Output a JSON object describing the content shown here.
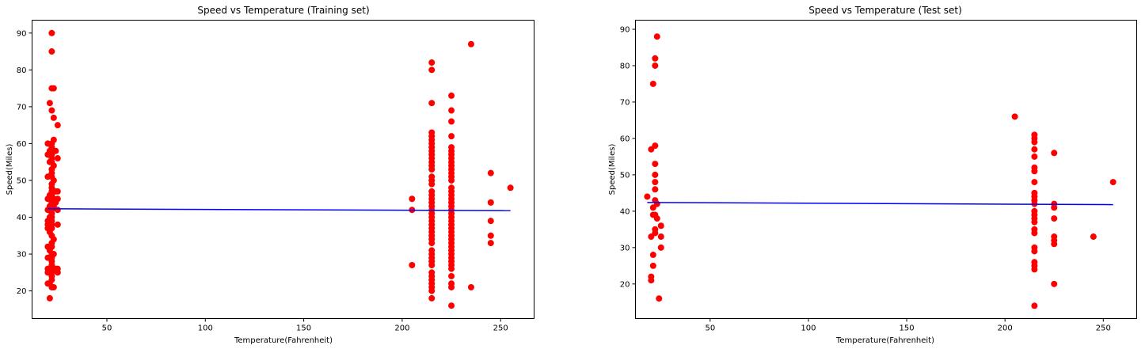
{
  "chart_data": [
    {
      "type": "scatter",
      "title": "Speed vs Temperature (Training set)",
      "xlabel": "Temperature(Fahrenheit)",
      "ylabel": "Speed(Miles)",
      "xlim": [
        12,
        267
      ],
      "ylim": [
        12.5,
        93.5
      ],
      "xticks": [
        50,
        100,
        150,
        200,
        250
      ],
      "yticks": [
        20,
        30,
        40,
        50,
        60,
        70,
        80,
        90
      ],
      "grid": false,
      "series": [
        {
          "kind": "points",
          "color": "#ff0000",
          "points": [
            [
              22,
              90
            ],
            [
              22,
              85
            ],
            [
              22,
              75
            ],
            [
              23,
              75
            ],
            [
              21,
              71
            ],
            [
              22,
              69
            ],
            [
              23,
              67
            ],
            [
              25,
              65
            ],
            [
              23,
              61
            ],
            [
              22,
              60
            ],
            [
              20,
              60
            ],
            [
              22,
              59
            ],
            [
              21,
              58
            ],
            [
              23,
              58
            ],
            [
              24,
              58
            ],
            [
              22,
              57
            ],
            [
              20,
              57
            ],
            [
              22,
              56
            ],
            [
              25,
              56
            ],
            [
              22,
              55
            ],
            [
              21,
              55
            ],
            [
              23,
              54
            ],
            [
              22,
              53
            ],
            [
              22,
              52
            ],
            [
              20,
              51
            ],
            [
              22,
              51
            ],
            [
              23,
              50
            ],
            [
              22,
              49
            ],
            [
              22,
              48
            ],
            [
              22,
              47
            ],
            [
              24,
              47
            ],
            [
              25,
              47
            ],
            [
              22,
              46
            ],
            [
              21,
              46
            ],
            [
              23,
              45
            ],
            [
              20,
              45
            ],
            [
              25,
              45
            ],
            [
              22,
              44
            ],
            [
              24,
              44
            ],
            [
              22,
              43
            ],
            [
              21,
              43
            ],
            [
              23,
              43
            ],
            [
              22,
              42
            ],
            [
              20,
              42
            ],
            [
              25,
              42
            ],
            [
              22,
              41
            ],
            [
              22,
              40
            ],
            [
              21,
              40
            ],
            [
              22,
              39
            ],
            [
              20,
              39
            ],
            [
              22,
              38
            ],
            [
              20,
              38
            ],
            [
              25,
              38
            ],
            [
              22,
              37
            ],
            [
              20,
              37
            ],
            [
              21,
              36
            ],
            [
              22,
              35
            ],
            [
              23,
              34
            ],
            [
              22,
              33
            ],
            [
              22,
              32
            ],
            [
              20,
              32
            ],
            [
              21,
              31
            ],
            [
              22,
              30
            ],
            [
              23,
              30
            ],
            [
              22,
              29
            ],
            [
              20,
              29
            ],
            [
              22,
              28
            ],
            [
              22,
              27
            ],
            [
              21,
              26
            ],
            [
              22,
              26
            ],
            [
              20,
              26
            ],
            [
              24,
              26
            ],
            [
              25,
              26
            ],
            [
              22,
              25
            ],
            [
              20,
              25
            ],
            [
              25,
              25
            ],
            [
              22,
              24
            ],
            [
              22,
              23
            ],
            [
              21,
              22
            ],
            [
              20,
              22
            ],
            [
              22,
              21
            ],
            [
              23,
              21
            ],
            [
              21,
              18
            ],
            [
              215,
              82
            ],
            [
              215,
              80
            ],
            [
              215,
              71
            ],
            [
              215,
              63
            ],
            [
              215,
              62
            ],
            [
              215,
              61
            ],
            [
              215,
              60
            ],
            [
              215,
              59
            ],
            [
              215,
              58
            ],
            [
              215,
              57
            ],
            [
              215,
              56
            ],
            [
              215,
              55
            ],
            [
              215,
              54
            ],
            [
              215,
              53
            ],
            [
              215,
              51
            ],
            [
              215,
              50
            ],
            [
              215,
              49
            ],
            [
              215,
              47
            ],
            [
              215,
              46
            ],
            [
              215,
              45
            ],
            [
              215,
              44
            ],
            [
              215,
              43
            ],
            [
              215,
              42
            ],
            [
              215,
              41
            ],
            [
              215,
              40
            ],
            [
              215,
              39
            ],
            [
              215,
              38
            ],
            [
              215,
              37
            ],
            [
              215,
              36
            ],
            [
              215,
              35
            ],
            [
              215,
              34
            ],
            [
              215,
              33
            ],
            [
              215,
              31
            ],
            [
              215,
              30
            ],
            [
              215,
              29
            ],
            [
              215,
              28
            ],
            [
              215,
              27
            ],
            [
              215,
              25
            ],
            [
              215,
              24
            ],
            [
              215,
              23
            ],
            [
              215,
              22
            ],
            [
              215,
              21
            ],
            [
              215,
              20
            ],
            [
              215,
              18
            ],
            [
              225,
              73
            ],
            [
              225,
              69
            ],
            [
              225,
              66
            ],
            [
              225,
              62
            ],
            [
              225,
              59
            ],
            [
              225,
              58
            ],
            [
              225,
              57
            ],
            [
              225,
              56
            ],
            [
              225,
              55
            ],
            [
              225,
              54
            ],
            [
              225,
              53
            ],
            [
              225,
              52
            ],
            [
              225,
              51
            ],
            [
              225,
              50
            ],
            [
              225,
              48
            ],
            [
              225,
              47
            ],
            [
              225,
              46
            ],
            [
              225,
              45
            ],
            [
              225,
              44
            ],
            [
              225,
              43
            ],
            [
              225,
              42
            ],
            [
              225,
              41
            ],
            [
              225,
              40
            ],
            [
              225,
              39
            ],
            [
              225,
              38
            ],
            [
              225,
              37
            ],
            [
              225,
              36
            ],
            [
              225,
              35
            ],
            [
              225,
              34
            ],
            [
              225,
              33
            ],
            [
              225,
              32
            ],
            [
              225,
              31
            ],
            [
              225,
              30
            ],
            [
              225,
              29
            ],
            [
              225,
              28
            ],
            [
              225,
              27
            ],
            [
              225,
              26
            ],
            [
              225,
              24
            ],
            [
              225,
              22
            ],
            [
              225,
              21
            ],
            [
              225,
              16
            ],
            [
              205,
              45
            ],
            [
              205,
              42
            ],
            [
              205,
              27
            ],
            [
              235,
              87
            ],
            [
              235,
              21
            ],
            [
              245,
              52
            ],
            [
              245,
              44
            ],
            [
              245,
              39
            ],
            [
              245,
              35
            ],
            [
              245,
              33
            ],
            [
              255,
              48
            ]
          ]
        },
        {
          "kind": "line",
          "color": "#0000ff",
          "x": [
            20,
            255
          ],
          "y": [
            42.3,
            41.8
          ]
        }
      ]
    },
    {
      "type": "scatter",
      "title": "Speed vs Temperature (Test set)",
      "xlabel": "Temperature(Fahrenheit)",
      "ylabel": "Speed(Miles)",
      "xlim": [
        12,
        267
      ],
      "ylim": [
        10.5,
        92.5
      ],
      "xticks": [
        50,
        100,
        150,
        200,
        250
      ],
      "yticks": [
        20,
        30,
        40,
        50,
        60,
        70,
        80,
        90
      ],
      "grid": false,
      "series": [
        {
          "kind": "points",
          "color": "#ff0000",
          "points": [
            [
              23,
              88
            ],
            [
              22,
              82
            ],
            [
              22,
              80
            ],
            [
              21,
              75
            ],
            [
              22,
              58
            ],
            [
              20,
              57
            ],
            [
              22,
              53
            ],
            [
              22,
              50
            ],
            [
              22,
              48
            ],
            [
              22,
              46
            ],
            [
              18,
              44
            ],
            [
              22,
              43
            ],
            [
              23,
              42
            ],
            [
              21,
              41
            ],
            [
              21,
              39
            ],
            [
              22,
              39
            ],
            [
              23,
              38
            ],
            [
              25,
              36
            ],
            [
              22,
              35
            ],
            [
              22,
              34
            ],
            [
              20,
              33
            ],
            [
              25,
              33
            ],
            [
              25,
              30
            ],
            [
              21,
              28
            ],
            [
              21,
              25
            ],
            [
              20,
              22
            ],
            [
              20,
              21
            ],
            [
              24,
              16
            ],
            [
              205,
              66
            ],
            [
              215,
              61
            ],
            [
              215,
              60
            ],
            [
              215,
              59
            ],
            [
              215,
              57
            ],
            [
              215,
              55
            ],
            [
              215,
              52
            ],
            [
              215,
              51
            ],
            [
              215,
              48
            ],
            [
              215,
              45
            ],
            [
              215,
              44
            ],
            [
              215,
              43
            ],
            [
              215,
              42
            ],
            [
              215,
              40
            ],
            [
              215,
              39
            ],
            [
              215,
              38
            ],
            [
              215,
              37
            ],
            [
              215,
              35
            ],
            [
              215,
              34
            ],
            [
              215,
              30
            ],
            [
              215,
              29
            ],
            [
              215,
              26
            ],
            [
              215,
              25
            ],
            [
              215,
              24
            ],
            [
              215,
              14
            ],
            [
              225,
              56
            ],
            [
              225,
              42
            ],
            [
              225,
              41
            ],
            [
              225,
              38
            ],
            [
              225,
              33
            ],
            [
              225,
              32
            ],
            [
              225,
              31
            ],
            [
              225,
              20
            ],
            [
              245,
              33
            ],
            [
              255,
              48
            ]
          ]
        },
        {
          "kind": "line",
          "color": "#0000ff",
          "x": [
            18,
            255
          ],
          "y": [
            42.4,
            41.8
          ]
        }
      ]
    }
  ]
}
